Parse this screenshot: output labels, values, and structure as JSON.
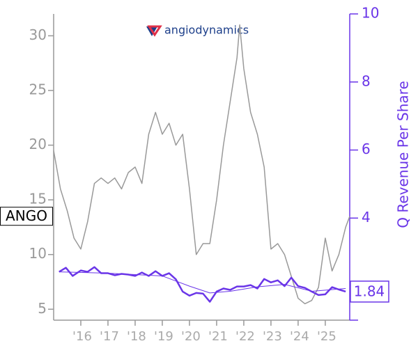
{
  "chart_data": {
    "type": "line",
    "logo": "angiodynamics",
    "ticker": "ANGO",
    "y2label": "Q Revenue Per Share",
    "xlim": [
      2015,
      2025.9
    ],
    "xticks": [
      {
        "value": 2016,
        "label": "'16"
      },
      {
        "value": 2017,
        "label": "'17"
      },
      {
        "value": 2018,
        "label": "'18"
      },
      {
        "value": 2019,
        "label": "'19"
      },
      {
        "value": 2020,
        "label": "'20"
      },
      {
        "value": 2021,
        "label": "'21"
      },
      {
        "value": 2022,
        "label": "'22"
      },
      {
        "value": 2023,
        "label": "'23"
      },
      {
        "value": 2024,
        "label": "'24"
      },
      {
        "value": 2025,
        "label": "'25"
      }
    ],
    "ylim": [
      4,
      32
    ],
    "yticks": [
      5,
      10,
      15,
      20,
      25,
      30
    ],
    "y2lim": [
      1,
      10
    ],
    "y2ticks": [
      4,
      6,
      8,
      10
    ],
    "series": [
      {
        "color": "#999999",
        "x": [
          2015,
          2015.25,
          2015.5,
          2015.75,
          2016,
          2016.25,
          2016.5,
          2016.75,
          2017,
          2017.25,
          2017.5,
          2017.75,
          2018,
          2018.25,
          2018.5,
          2018.75,
          2019,
          2019.25,
          2019.5,
          2019.75,
          2020,
          2020.25,
          2020.5,
          2020.75,
          2021,
          2021.25,
          2021.5,
          2021.75,
          2021.85,
          2022,
          2022.25,
          2022.5,
          2022.75,
          2023,
          2023.25,
          2023.5,
          2023.75,
          2024,
          2024.25,
          2024.5,
          2024.75,
          2025,
          2025.25,
          2025.5,
          2025.75,
          2025.9
        ],
        "values": [
          19.5,
          16,
          14,
          11.5,
          10.5,
          13,
          16.5,
          17,
          16.5,
          17,
          16,
          17.5,
          18,
          16.5,
          21,
          23,
          21,
          22,
          20,
          21,
          16,
          10,
          11,
          11,
          15,
          20,
          24,
          28,
          31,
          27,
          23,
          21,
          18,
          10.5,
          11,
          10,
          8,
          6,
          5.5,
          5.8,
          7,
          11.5,
          8.5,
          10,
          12.5,
          13.5
        ]
      },
      {
        "color": "#6a35e8",
        "axis": "y2",
        "x": [
          2015.2,
          2015.45,
          2015.7,
          2016,
          2016.25,
          2016.5,
          2016.75,
          2017,
          2017.25,
          2017.5,
          2017.75,
          2018,
          2018.25,
          2018.5,
          2018.75,
          2019,
          2019.25,
          2019.5,
          2019.75,
          2020,
          2020.25,
          2020.5,
          2020.75,
          2021,
          2021.25,
          2021.5,
          2021.75,
          2022,
          2022.25,
          2022.5,
          2022.75,
          2023,
          2023.25,
          2023.5,
          2023.75,
          2024,
          2024.25,
          2024.5,
          2024.75,
          2025,
          2025.25,
          2025.5,
          2025.75
        ],
        "values": [
          2.42,
          2.54,
          2.3,
          2.46,
          2.42,
          2.56,
          2.38,
          2.38,
          2.32,
          2.36,
          2.34,
          2.3,
          2.4,
          2.3,
          2.44,
          2.3,
          2.38,
          2.2,
          1.84,
          1.72,
          1.8,
          1.78,
          1.54,
          1.84,
          1.93,
          1.89,
          1.99,
          1.99,
          2.03,
          1.93,
          2.21,
          2.11,
          2.17,
          2.0,
          2.25,
          2.0,
          1.95,
          1.84,
          1.74,
          1.76,
          1.97,
          1.9,
          1.84
        ]
      },
      {
        "color": "#6a35e8",
        "axis": "y2",
        "x": [
          2015.2,
          2017,
          2019,
          2020,
          2020.75,
          2021.5,
          2022.5,
          2023.5,
          2024.5,
          2025.75
        ],
        "values": [
          2.42,
          2.38,
          2.3,
          2.0,
          1.8,
          1.85,
          1.98,
          2.05,
          1.85,
          1.93
        ]
      }
    ]
  }
}
